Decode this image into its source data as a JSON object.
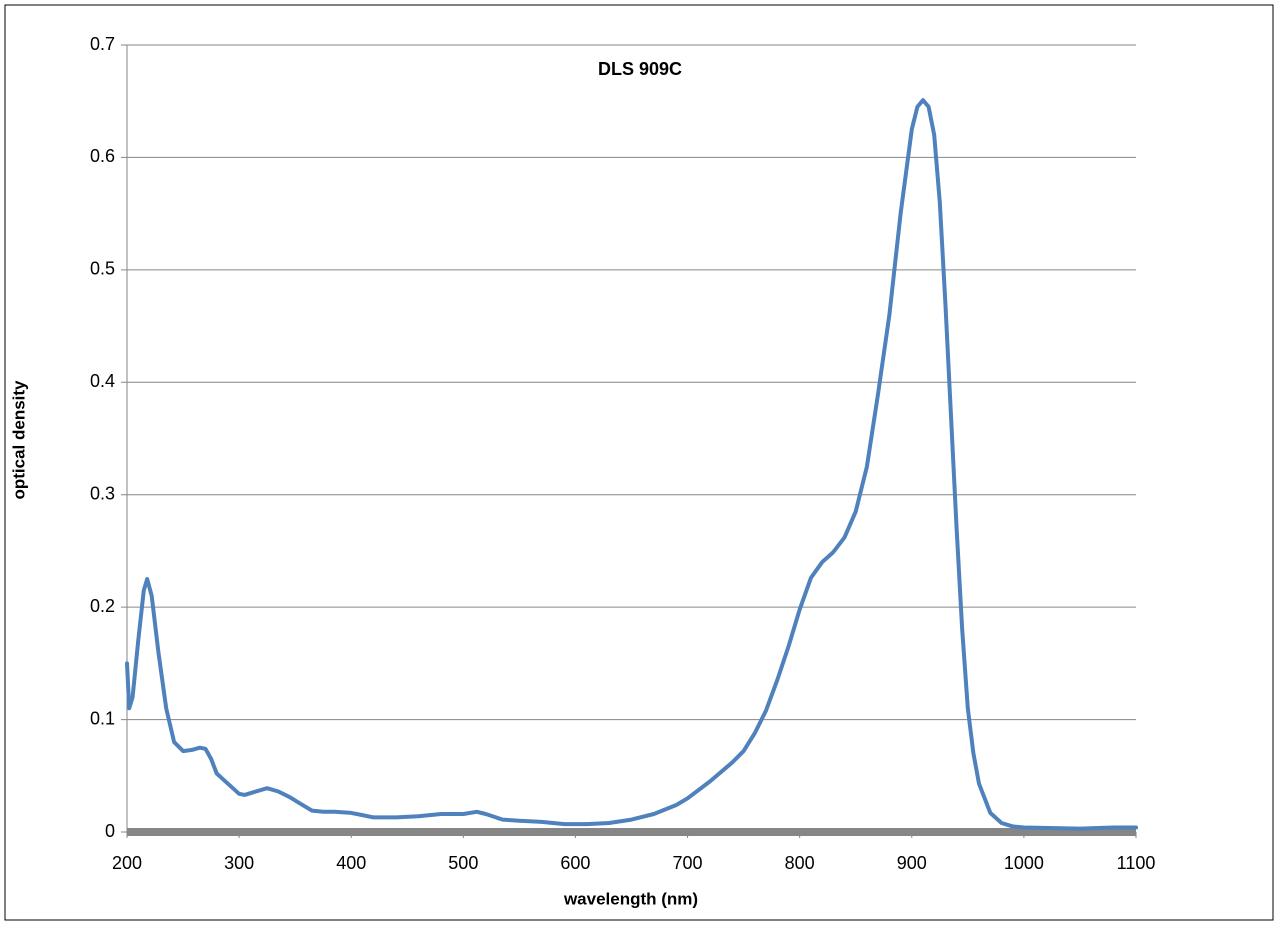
{
  "chart_data": {
    "type": "line",
    "title": "DLS 909C",
    "x_label": "wavelength (nm)",
    "y_label": "optical density",
    "x": [
      200,
      202,
      205,
      210,
      215,
      218,
      222,
      228,
      235,
      242,
      250,
      258,
      265,
      270,
      275,
      280,
      290,
      300,
      305,
      315,
      325,
      335,
      345,
      355,
      365,
      375,
      385,
      400,
      410,
      420,
      440,
      460,
      480,
      500,
      512,
      520,
      535,
      550,
      570,
      590,
      610,
      630,
      650,
      670,
      690,
      700,
      720,
      740,
      750,
      760,
      770,
      780,
      790,
      800,
      810,
      820,
      830,
      840,
      850,
      860,
      870,
      880,
      890,
      900,
      905,
      910,
      915,
      920,
      925,
      930,
      935,
      940,
      945,
      950,
      955,
      960,
      970,
      980,
      990,
      1000,
      1050,
      1080,
      1100
    ],
    "values": [
      0.15,
      0.11,
      0.12,
      0.17,
      0.215,
      0.225,
      0.21,
      0.16,
      0.11,
      0.08,
      0.072,
      0.073,
      0.075,
      0.074,
      0.065,
      0.052,
      0.043,
      0.034,
      0.033,
      0.036,
      0.039,
      0.036,
      0.031,
      0.025,
      0.019,
      0.018,
      0.018,
      0.017,
      0.015,
      0.013,
      0.013,
      0.014,
      0.016,
      0.016,
      0.018,
      0.016,
      0.011,
      0.01,
      0.009,
      0.007,
      0.007,
      0.008,
      0.011,
      0.016,
      0.024,
      0.03,
      0.045,
      0.062,
      0.072,
      0.088,
      0.108,
      0.135,
      0.165,
      0.198,
      0.226,
      0.24,
      0.249,
      0.262,
      0.285,
      0.325,
      0.39,
      0.46,
      0.55,
      0.625,
      0.645,
      0.651,
      0.645,
      0.62,
      0.56,
      0.47,
      0.37,
      0.27,
      0.18,
      0.11,
      0.07,
      0.043,
      0.017,
      0.008,
      0.005,
      0.004,
      0.003,
      0.004,
      0.004
    ],
    "color": "#4f81bd",
    "xlim": [
      200,
      1100
    ],
    "xticks": [
      200,
      300,
      400,
      500,
      600,
      700,
      800,
      900,
      1000,
      1100
    ],
    "ylim": [
      0,
      0.7
    ],
    "yticks": [
      0,
      0.1,
      0.2,
      0.3,
      0.4,
      0.5,
      0.6,
      0.7
    ],
    "grid": true
  }
}
